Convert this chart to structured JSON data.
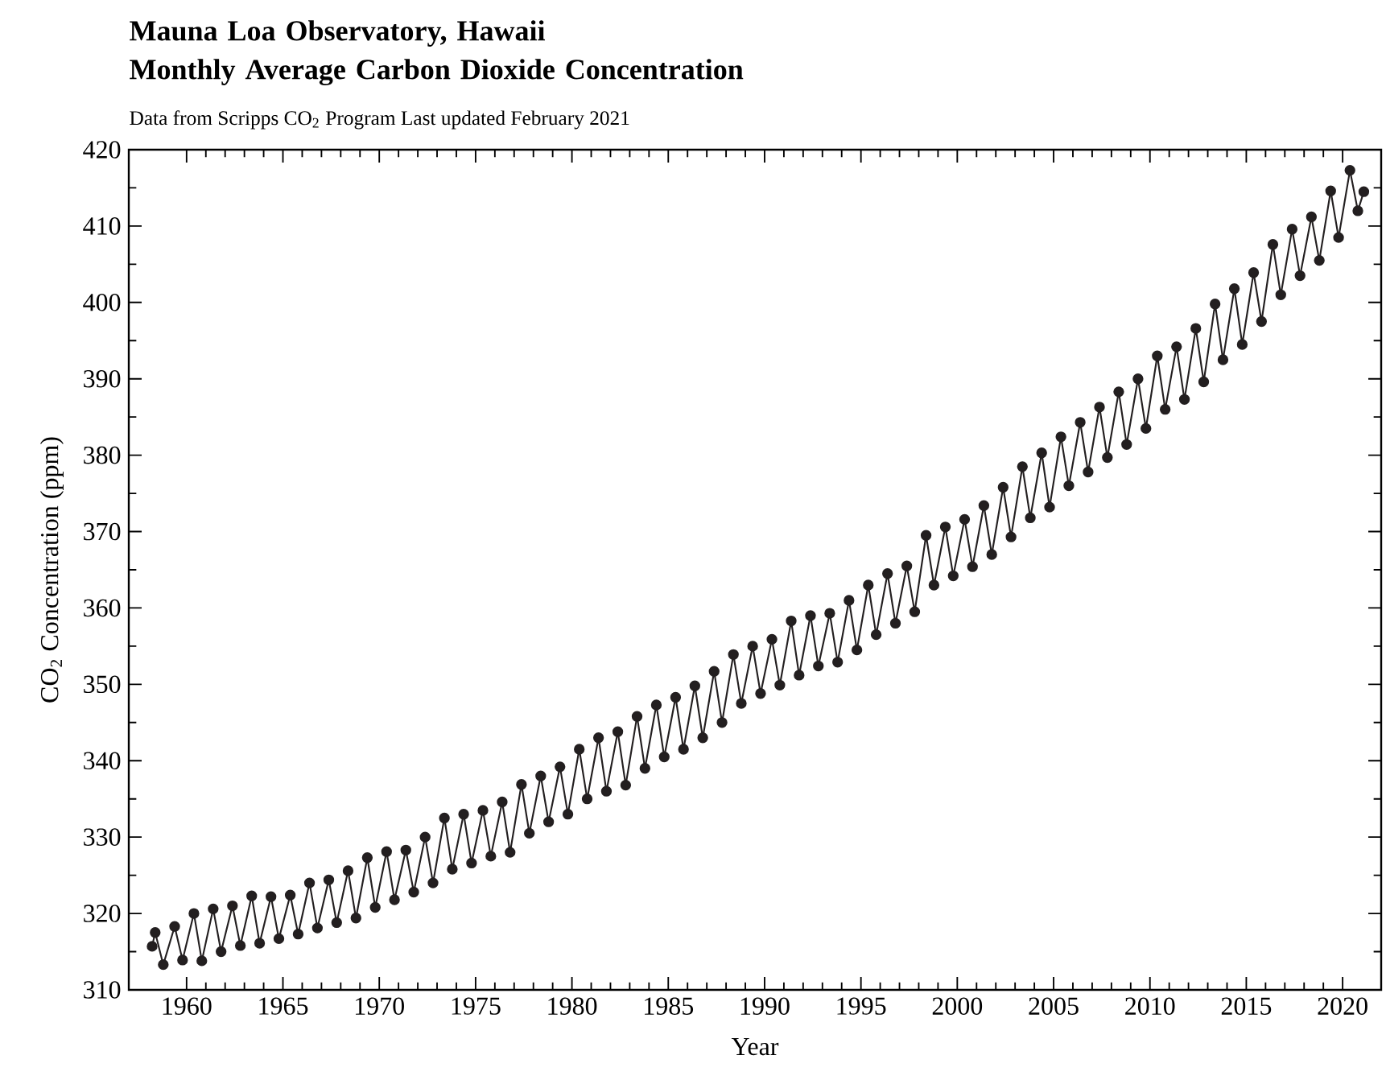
{
  "chart_data": {
    "type": "line",
    "title": "Mauna Loa Observatory, Hawaii\nMonthly Average Carbon Dioxide Concentration",
    "subtitle": "Data from Scripps CO$_{2}$ Program   Last updated February 2021",
    "xlabel": "Year",
    "ylabel": "CO$_{2}$ Concentration (ppm)",
    "x": [
      1958.21,
      1958.37,
      1958.79,
      1959.38,
      1959.79,
      1960.38,
      1960.79,
      1961.38,
      1961.79,
      1962.38,
      1962.79,
      1963.38,
      1963.79,
      1964.38,
      1964.79,
      1965.38,
      1965.79,
      1966.38,
      1966.79,
      1967.38,
      1967.79,
      1968.38,
      1968.79,
      1969.38,
      1969.79,
      1970.38,
      1970.79,
      1971.38,
      1971.79,
      1972.38,
      1972.79,
      1973.38,
      1973.79,
      1974.38,
      1974.79,
      1975.38,
      1975.79,
      1976.38,
      1976.79,
      1977.38,
      1977.79,
      1978.38,
      1978.79,
      1979.38,
      1979.79,
      1980.38,
      1980.79,
      1981.38,
      1981.79,
      1982.38,
      1982.79,
      1983.38,
      1983.79,
      1984.38,
      1984.79,
      1985.38,
      1985.79,
      1986.38,
      1986.79,
      1987.38,
      1987.79,
      1988.38,
      1988.79,
      1989.38,
      1989.79,
      1990.38,
      1990.79,
      1991.38,
      1991.79,
      1992.38,
      1992.79,
      1993.38,
      1993.79,
      1994.38,
      1994.79,
      1995.38,
      1995.79,
      1996.38,
      1996.79,
      1997.38,
      1997.79,
      1998.38,
      1998.79,
      1999.38,
      1999.79,
      2000.38,
      2000.79,
      2001.38,
      2001.79,
      2002.38,
      2002.79,
      2003.38,
      2003.79,
      2004.38,
      2004.79,
      2005.38,
      2005.79,
      2006.38,
      2006.79,
      2007.38,
      2007.79,
      2008.38,
      2008.79,
      2009.38,
      2009.79,
      2010.38,
      2010.79,
      2011.38,
      2011.79,
      2012.38,
      2012.79,
      2013.38,
      2013.79,
      2014.38,
      2014.79,
      2015.38,
      2015.79,
      2016.38,
      2016.79,
      2017.38,
      2017.79,
      2018.38,
      2018.79,
      2019.38,
      2019.79,
      2020.38,
      2020.79,
      2021.1
    ],
    "values": [
      315.7,
      317.5,
      313.3,
      318.3,
      313.9,
      320.0,
      313.8,
      320.6,
      315.0,
      321.0,
      315.8,
      322.3,
      316.1,
      322.2,
      316.7,
      322.4,
      317.3,
      324.0,
      318.1,
      324.4,
      318.8,
      325.6,
      319.4,
      327.3,
      320.8,
      328.1,
      321.8,
      328.3,
      322.8,
      330.0,
      324.0,
      332.5,
      325.8,
      333.0,
      326.6,
      333.5,
      327.5,
      334.6,
      328.0,
      336.9,
      330.5,
      338.0,
      332.0,
      339.2,
      333.0,
      341.5,
      335.0,
      343.0,
      336.0,
      343.8,
      336.8,
      345.8,
      339.0,
      347.3,
      340.5,
      348.3,
      341.5,
      349.8,
      343.0,
      351.7,
      345.0,
      353.9,
      347.5,
      355.0,
      348.8,
      355.9,
      349.9,
      358.3,
      351.2,
      359.0,
      352.4,
      359.3,
      352.9,
      361.0,
      354.5,
      363.0,
      356.5,
      364.5,
      358.0,
      365.5,
      359.5,
      369.5,
      363.0,
      370.6,
      364.2,
      371.6,
      365.4,
      373.4,
      367.0,
      375.8,
      369.3,
      378.5,
      371.8,
      380.3,
      373.2,
      382.4,
      376.0,
      384.3,
      377.8,
      386.3,
      379.7,
      388.3,
      381.4,
      390.0,
      383.5,
      393.0,
      386.0,
      394.2,
      387.3,
      396.6,
      389.6,
      399.8,
      392.5,
      401.8,
      394.5,
      403.9,
      397.5,
      407.6,
      401.0,
      409.6,
      403.5,
      411.2,
      405.5,
      414.6,
      408.5,
      417.3,
      412.0,
      414.5
    ],
    "color": "#231f20",
    "marker": "circle",
    "line_style": "solid",
    "xlim": [
      1957,
      2022
    ],
    "ylim": [
      310,
      420
    ],
    "xticks": [
      1960,
      1965,
      1970,
      1975,
      1980,
      1985,
      1990,
      1995,
      2000,
      2005,
      2010,
      2015,
      2020
    ],
    "yticks": [
      310,
      320,
      330,
      340,
      350,
      360,
      370,
      380,
      390,
      400,
      410,
      420
    ]
  }
}
